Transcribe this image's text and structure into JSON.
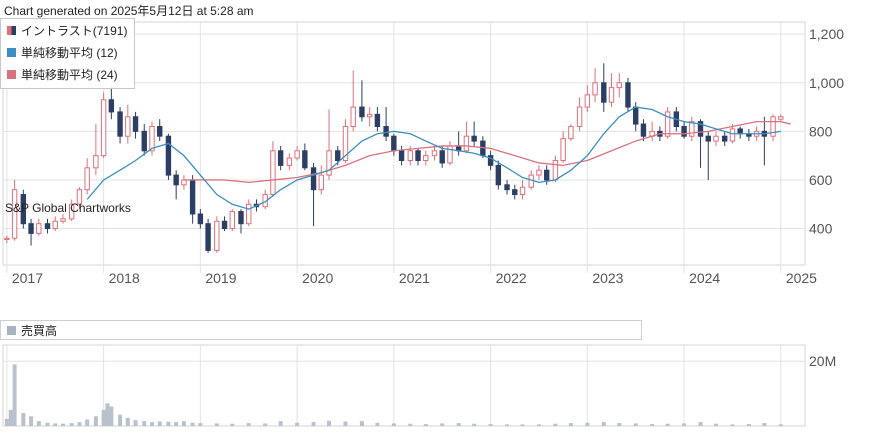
{
  "header": {
    "generated": "Chart generated on 2025年5月12日 at 5:28 am"
  },
  "legend": {
    "items": [
      {
        "label": "イントラスト(7191)",
        "color": "#e0707a",
        "color2": "#2c3e63"
      },
      {
        "label": "単純移動平均 (12)",
        "color": "#3b8fc4"
      },
      {
        "label": "単純移動平均 (24)",
        "color": "#d9737e"
      }
    ]
  },
  "watermark": "S&P Global Chartworks",
  "volume_legend": {
    "label": "売買高",
    "color": "#aab4c0"
  },
  "colors": {
    "up": "#e0707a",
    "down": "#2c3e63",
    "ma12": "#3b8fc4",
    "ma24": "#d9737e",
    "volume": "#b9c1cc",
    "grid": "#e3e3e3"
  },
  "chart_data": [
    {
      "type": "candlestick",
      "x_unit": "year",
      "x_ticks": [
        "2017",
        "2018",
        "2019",
        "2020",
        "2021",
        "2022",
        "2023",
        "2024",
        "2025"
      ],
      "y_ticks": [
        "400",
        "600",
        "800",
        "1,000",
        "1,200"
      ],
      "ylim": [
        250,
        1250
      ],
      "xlim": [
        2016.96,
        2025.25
      ],
      "grid": true,
      "legend_position": "top-left",
      "candles": [
        [
          2017.0,
          355,
          360,
          340,
          370
        ],
        [
          2017.08,
          360,
          560,
          350,
          600
        ],
        [
          2017.17,
          540,
          420,
          400,
          560
        ],
        [
          2017.25,
          420,
          380,
          330,
          440
        ],
        [
          2017.33,
          380,
          420,
          370,
          440
        ],
        [
          2017.42,
          420,
          400,
          380,
          440
        ],
        [
          2017.5,
          400,
          430,
          390,
          450
        ],
        [
          2017.58,
          430,
          440,
          420,
          460
        ],
        [
          2017.67,
          440,
          500,
          430,
          520
        ],
        [
          2017.75,
          500,
          560,
          480,
          570
        ],
        [
          2017.83,
          560,
          650,
          540,
          690
        ],
        [
          2017.92,
          650,
          700,
          620,
          830
        ],
        [
          2018.0,
          700,
          930,
          690,
          960
        ],
        [
          2018.08,
          930,
          880,
          850,
          990
        ],
        [
          2018.17,
          880,
          780,
          750,
          900
        ],
        [
          2018.25,
          780,
          860,
          750,
          910
        ],
        [
          2018.33,
          860,
          800,
          770,
          880
        ],
        [
          2018.42,
          800,
          720,
          700,
          830
        ],
        [
          2018.5,
          720,
          820,
          700,
          840
        ],
        [
          2018.58,
          820,
          780,
          760,
          850
        ],
        [
          2018.67,
          780,
          620,
          600,
          790
        ],
        [
          2018.75,
          620,
          580,
          520,
          640
        ],
        [
          2018.83,
          580,
          600,
          560,
          620
        ],
        [
          2018.92,
          600,
          460,
          420,
          620
        ],
        [
          2019.0,
          460,
          420,
          400,
          480
        ],
        [
          2019.08,
          420,
          310,
          300,
          440
        ],
        [
          2019.17,
          310,
          430,
          300,
          450
        ],
        [
          2019.25,
          430,
          400,
          390,
          450
        ],
        [
          2019.33,
          400,
          470,
          390,
          480
        ],
        [
          2019.42,
          470,
          420,
          380,
          480
        ],
        [
          2019.5,
          420,
          500,
          410,
          520
        ],
        [
          2019.58,
          500,
          490,
          470,
          520
        ],
        [
          2019.67,
          490,
          540,
          480,
          560
        ],
        [
          2019.75,
          540,
          720,
          530,
          760
        ],
        [
          2019.83,
          720,
          660,
          640,
          740
        ],
        [
          2019.92,
          660,
          690,
          640,
          710
        ],
        [
          2020.0,
          690,
          720,
          680,
          740
        ],
        [
          2020.08,
          720,
          650,
          640,
          750
        ],
        [
          2020.17,
          650,
          560,
          410,
          670
        ],
        [
          2020.25,
          560,
          620,
          540,
          660
        ],
        [
          2020.33,
          620,
          720,
          600,
          890
        ],
        [
          2020.42,
          720,
          680,
          660,
          740
        ],
        [
          2020.5,
          680,
          820,
          670,
          850
        ],
        [
          2020.58,
          820,
          900,
          800,
          1050
        ],
        [
          2020.67,
          900,
          860,
          840,
          1010
        ],
        [
          2020.75,
          860,
          870,
          820,
          900
        ],
        [
          2020.83,
          870,
          820,
          800,
          900
        ],
        [
          2020.92,
          820,
          780,
          760,
          900
        ],
        [
          2021.0,
          780,
          720,
          700,
          790
        ],
        [
          2021.08,
          720,
          680,
          660,
          740
        ],
        [
          2021.17,
          680,
          720,
          660,
          740
        ],
        [
          2021.25,
          720,
          680,
          660,
          730
        ],
        [
          2021.33,
          680,
          700,
          660,
          720
        ],
        [
          2021.42,
          700,
          720,
          680,
          740
        ],
        [
          2021.5,
          720,
          670,
          650,
          740
        ],
        [
          2021.58,
          670,
          740,
          660,
          760
        ],
        [
          2021.67,
          740,
          720,
          700,
          800
        ],
        [
          2021.75,
          720,
          780,
          710,
          840
        ],
        [
          2021.83,
          780,
          760,
          740,
          840
        ],
        [
          2021.92,
          760,
          700,
          690,
          780
        ],
        [
          2022.0,
          700,
          660,
          640,
          720
        ],
        [
          2022.08,
          660,
          580,
          560,
          680
        ],
        [
          2022.17,
          580,
          560,
          540,
          600
        ],
        [
          2022.25,
          560,
          540,
          520,
          580
        ],
        [
          2022.33,
          540,
          570,
          520,
          600
        ],
        [
          2022.42,
          570,
          620,
          560,
          640
        ],
        [
          2022.5,
          620,
          640,
          600,
          660
        ],
        [
          2022.58,
          640,
          600,
          580,
          660
        ],
        [
          2022.67,
          600,
          680,
          590,
          700
        ],
        [
          2022.75,
          680,
          770,
          670,
          800
        ],
        [
          2022.83,
          770,
          820,
          760,
          830
        ],
        [
          2022.92,
          820,
          900,
          800,
          940
        ],
        [
          2023.0,
          900,
          950,
          880,
          990
        ],
        [
          2023.08,
          950,
          1000,
          920,
          1060
        ],
        [
          2023.17,
          1000,
          920,
          880,
          1080
        ],
        [
          2023.25,
          920,
          980,
          900,
          1040
        ],
        [
          2023.33,
          980,
          1000,
          940,
          1040
        ],
        [
          2023.42,
          1000,
          900,
          880,
          1020
        ],
        [
          2023.5,
          900,
          830,
          800,
          920
        ],
        [
          2023.58,
          830,
          780,
          760,
          850
        ],
        [
          2023.67,
          780,
          800,
          760,
          840
        ],
        [
          2023.75,
          800,
          780,
          760,
          820
        ],
        [
          2023.83,
          780,
          880,
          770,
          900
        ],
        [
          2023.92,
          880,
          820,
          800,
          900
        ],
        [
          2024.0,
          820,
          780,
          770,
          840
        ],
        [
          2024.08,
          780,
          840,
          760,
          860
        ],
        [
          2024.17,
          840,
          780,
          650,
          850
        ],
        [
          2024.25,
          780,
          760,
          600,
          800
        ],
        [
          2024.33,
          760,
          780,
          740,
          800
        ],
        [
          2024.42,
          780,
          760,
          740,
          800
        ],
        [
          2024.5,
          760,
          810,
          750,
          830
        ],
        [
          2024.58,
          810,
          790,
          770,
          820
        ],
        [
          2024.67,
          790,
          780,
          760,
          810
        ],
        [
          2024.75,
          780,
          800,
          760,
          820
        ],
        [
          2024.83,
          800,
          780,
          660,
          860
        ],
        [
          2024.92,
          780,
          860,
          760,
          870
        ],
        [
          2025.0,
          850,
          860,
          840,
          870
        ]
      ],
      "ma12": [
        [
          2017.83,
          520
        ],
        [
          2018.0,
          600
        ],
        [
          2018.17,
          640
        ],
        [
          2018.33,
          680
        ],
        [
          2018.5,
          730
        ],
        [
          2018.67,
          750
        ],
        [
          2018.83,
          700
        ],
        [
          2019.0,
          620
        ],
        [
          2019.17,
          540
        ],
        [
          2019.33,
          500
        ],
        [
          2019.5,
          480
        ],
        [
          2019.67,
          510
        ],
        [
          2019.83,
          560
        ],
        [
          2020.0,
          600
        ],
        [
          2020.17,
          620
        ],
        [
          2020.33,
          640
        ],
        [
          2020.5,
          700
        ],
        [
          2020.67,
          760
        ],
        [
          2020.83,
          790
        ],
        [
          2021.0,
          800
        ],
        [
          2021.17,
          790
        ],
        [
          2021.33,
          760
        ],
        [
          2021.5,
          730
        ],
        [
          2021.67,
          720
        ],
        [
          2021.83,
          710
        ],
        [
          2022.0,
          690
        ],
        [
          2022.17,
          650
        ],
        [
          2022.33,
          610
        ],
        [
          2022.5,
          590
        ],
        [
          2022.67,
          600
        ],
        [
          2022.83,
          640
        ],
        [
          2023.0,
          700
        ],
        [
          2023.17,
          790
        ],
        [
          2023.33,
          860
        ],
        [
          2023.5,
          900
        ],
        [
          2023.67,
          890
        ],
        [
          2023.83,
          860
        ],
        [
          2024.0,
          840
        ],
        [
          2024.17,
          830
        ],
        [
          2024.33,
          810
        ],
        [
          2024.5,
          790
        ],
        [
          2024.67,
          790
        ],
        [
          2024.83,
          790
        ],
        [
          2025.0,
          800
        ]
      ],
      "ma24": [
        [
          2018.83,
          600
        ],
        [
          2019.0,
          600
        ],
        [
          2019.25,
          600
        ],
        [
          2019.5,
          590
        ],
        [
          2019.75,
          600
        ],
        [
          2020.0,
          610
        ],
        [
          2020.25,
          630
        ],
        [
          2020.5,
          660
        ],
        [
          2020.75,
          700
        ],
        [
          2021.0,
          720
        ],
        [
          2021.25,
          730
        ],
        [
          2021.5,
          740
        ],
        [
          2021.75,
          740
        ],
        [
          2022.0,
          730
        ],
        [
          2022.25,
          700
        ],
        [
          2022.5,
          670
        ],
        [
          2022.75,
          660
        ],
        [
          2023.0,
          680
        ],
        [
          2023.25,
          720
        ],
        [
          2023.5,
          760
        ],
        [
          2023.75,
          790
        ],
        [
          2024.0,
          790
        ],
        [
          2024.25,
          800
        ],
        [
          2024.5,
          820
        ],
        [
          2024.75,
          840
        ],
        [
          2025.0,
          840
        ],
        [
          2025.1,
          830
        ]
      ]
    },
    {
      "type": "bar",
      "series_name": "売買高",
      "y_ticks": [
        "20M"
      ],
      "ylim": [
        0,
        25000000
      ],
      "values": [
        [
          2017.0,
          2200000
        ],
        [
          2017.04,
          5000000
        ],
        [
          2017.08,
          19000000
        ],
        [
          2017.17,
          4000000
        ],
        [
          2017.25,
          3000000
        ],
        [
          2017.33,
          1500000
        ],
        [
          2017.42,
          1000000
        ],
        [
          2017.5,
          800000
        ],
        [
          2017.58,
          700000
        ],
        [
          2017.67,
          900000
        ],
        [
          2017.75,
          1200000
        ],
        [
          2017.83,
          2000000
        ],
        [
          2017.92,
          3000000
        ],
        [
          2018.0,
          5000000
        ],
        [
          2018.04,
          7000000
        ],
        [
          2018.08,
          6000000
        ],
        [
          2018.17,
          3500000
        ],
        [
          2018.25,
          2500000
        ],
        [
          2018.33,
          1800000
        ],
        [
          2018.42,
          1500000
        ],
        [
          2018.5,
          1200000
        ],
        [
          2018.58,
          1400000
        ],
        [
          2018.67,
          1300000
        ],
        [
          2018.75,
          1200000
        ],
        [
          2018.83,
          1500000
        ],
        [
          2018.92,
          1000000
        ],
        [
          2019.0,
          900000
        ],
        [
          2019.17,
          800000
        ],
        [
          2019.33,
          700000
        ],
        [
          2019.5,
          900000
        ],
        [
          2019.67,
          800000
        ],
        [
          2019.83,
          1500000
        ],
        [
          2020.0,
          1000000
        ],
        [
          2020.17,
          1200000
        ],
        [
          2020.33,
          1600000
        ],
        [
          2020.5,
          1400000
        ],
        [
          2020.67,
          1500000
        ],
        [
          2020.83,
          1000000
        ],
        [
          2021.0,
          800000
        ],
        [
          2021.17,
          700000
        ],
        [
          2021.33,
          600000
        ],
        [
          2021.5,
          800000
        ],
        [
          2021.67,
          900000
        ],
        [
          2021.83,
          700000
        ],
        [
          2022.0,
          600000
        ],
        [
          2022.17,
          500000
        ],
        [
          2022.33,
          500000
        ],
        [
          2022.5,
          500000
        ],
        [
          2022.67,
          700000
        ],
        [
          2022.83,
          900000
        ],
        [
          2023.0,
          1000000
        ],
        [
          2023.17,
          1200000
        ],
        [
          2023.33,
          900000
        ],
        [
          2023.5,
          800000
        ],
        [
          2023.67,
          600000
        ],
        [
          2023.83,
          700000
        ],
        [
          2024.0,
          800000
        ],
        [
          2024.17,
          1200000
        ],
        [
          2024.33,
          700000
        ],
        [
          2024.5,
          500000
        ],
        [
          2024.67,
          600000
        ],
        [
          2024.83,
          900000
        ],
        [
          2025.0,
          500000
        ]
      ]
    }
  ]
}
